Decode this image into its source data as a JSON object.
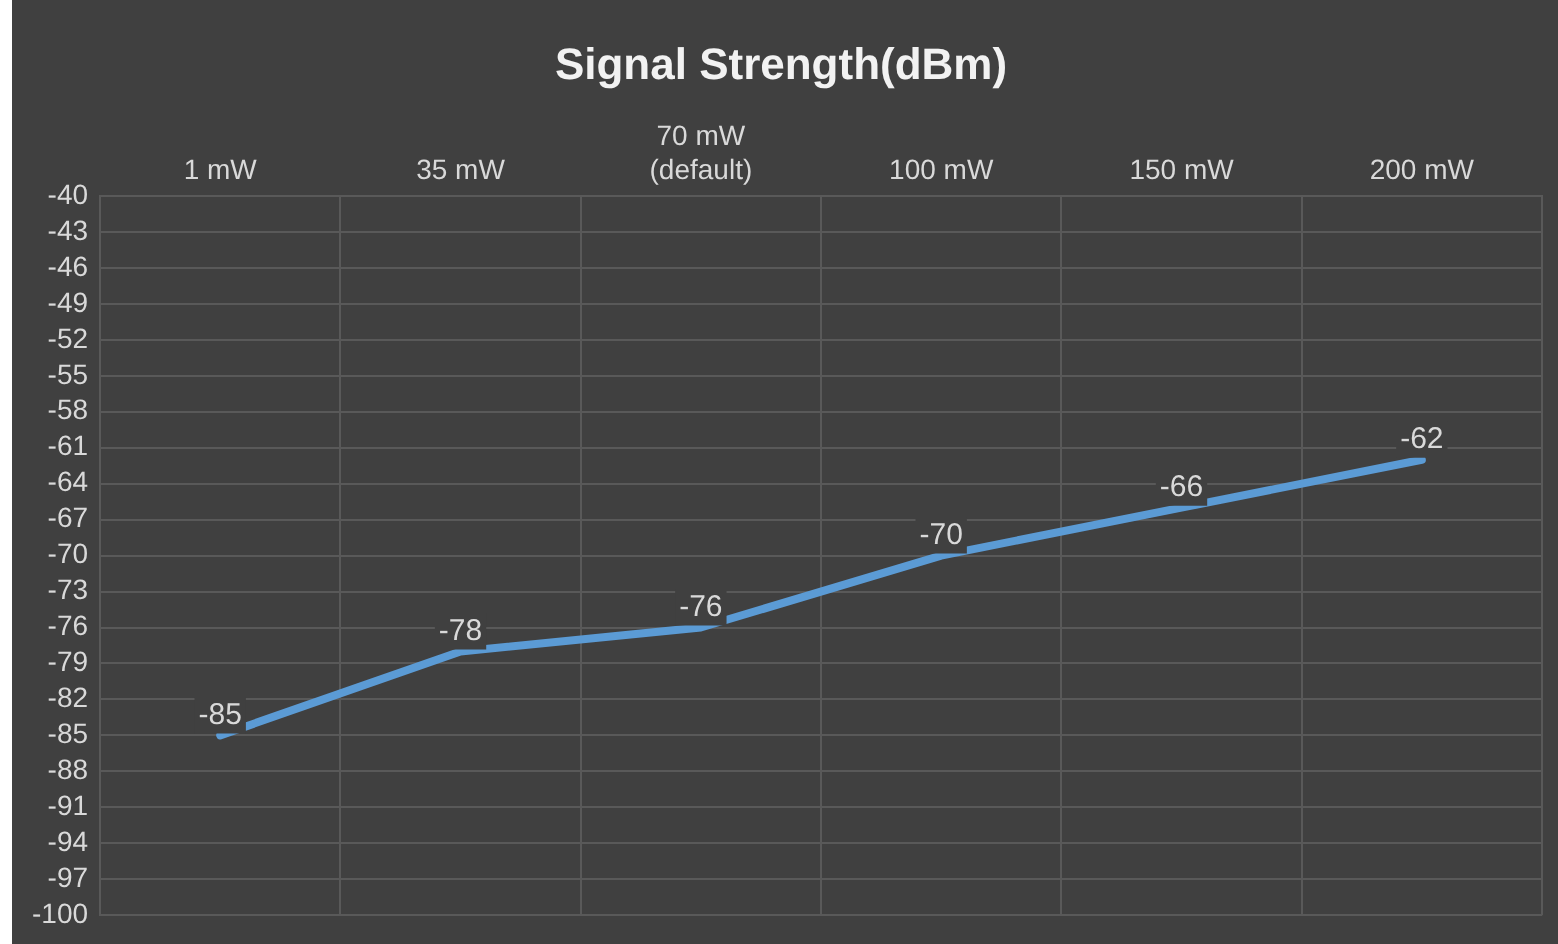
{
  "chart_data": {
    "type": "line",
    "title": "Signal Strength(dBm)",
    "categories": [
      "1 mW",
      "35 mW",
      "70 mW\n(default)",
      "100 mW",
      "150 mW",
      "200 mW"
    ],
    "series": [
      {
        "color": "#5b9bd5",
        "values": [
          -85,
          -78,
          -76,
          -70,
          -66,
          -62
        ]
      }
    ],
    "ylim": [
      -100,
      -40
    ],
    "yticks": [
      -100,
      -97,
      -94,
      -91,
      -88,
      -85,
      -82,
      -79,
      -76,
      -73,
      -70,
      -67,
      -64,
      -61,
      -58,
      -55,
      -52,
      -49,
      -46,
      -43,
      -40
    ],
    "grid": true,
    "legend": false,
    "marker": "none",
    "line_style": "solid",
    "data_labels": true
  }
}
